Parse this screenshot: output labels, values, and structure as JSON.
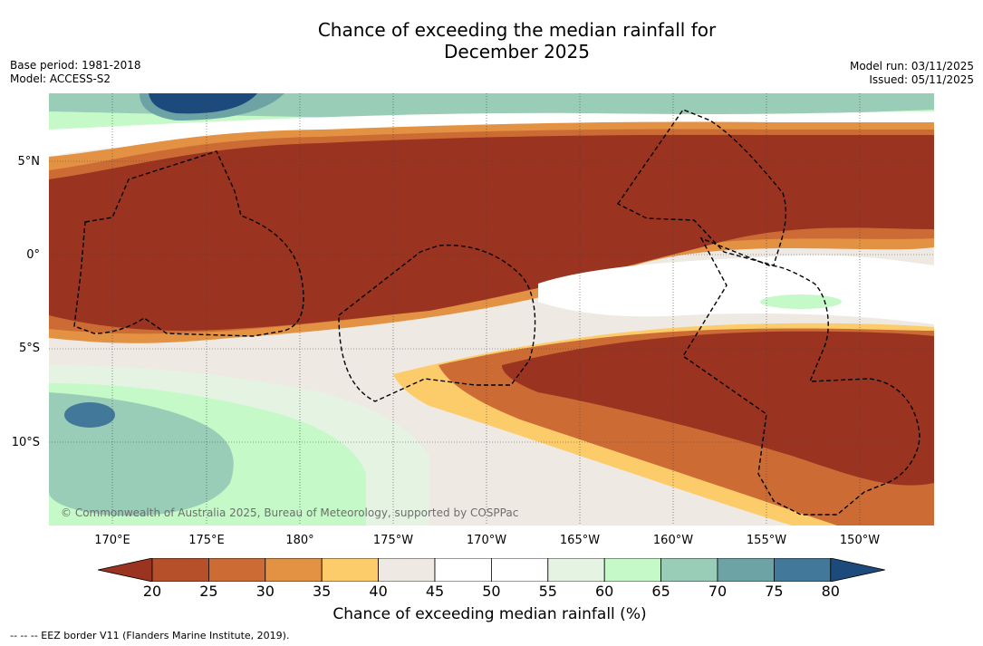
{
  "header": {
    "title_line1": "Chance of exceeding the median rainfall for",
    "title_line2": "December 2025",
    "base_period": "Base period: 1981-2018",
    "model": "Model: ACCESS-S2",
    "model_run": "Model run: 03/11/2025",
    "issued": "Issued: 05/11/2025"
  },
  "map": {
    "lat_labels": [
      "5°N",
      "0°",
      "5°S",
      "10°S"
    ],
    "lon_labels": [
      "170°E",
      "175°E",
      "180°",
      "175°W",
      "170°W",
      "165°W",
      "160°W",
      "155°W",
      "150°W"
    ],
    "copyright": "© Commonwealth of Australia 2025, Bureau of Meteorology, supported by COSPPac"
  },
  "colorbar": {
    "ticks": [
      "20",
      "25",
      "30",
      "35",
      "40",
      "45",
      "50",
      "55",
      "60",
      "65",
      "70",
      "75",
      "80"
    ],
    "colors": [
      "#9a3320",
      "#b5502a",
      "#cc6c34",
      "#e39143",
      "#fdcc6a",
      "#efe9e3",
      "#ffffff",
      "#ffffff",
      "#e5f3e3",
      "#c5f9c8",
      "#99cdb7",
      "#6ea3a6",
      "#427899",
      "#1d4a7c"
    ],
    "label": "Chance of exceeding median rainfall (%)"
  },
  "legend": {
    "text": "-- -- -- EEZ border V11 (Flanders Marine Institute, 2019)."
  }
}
